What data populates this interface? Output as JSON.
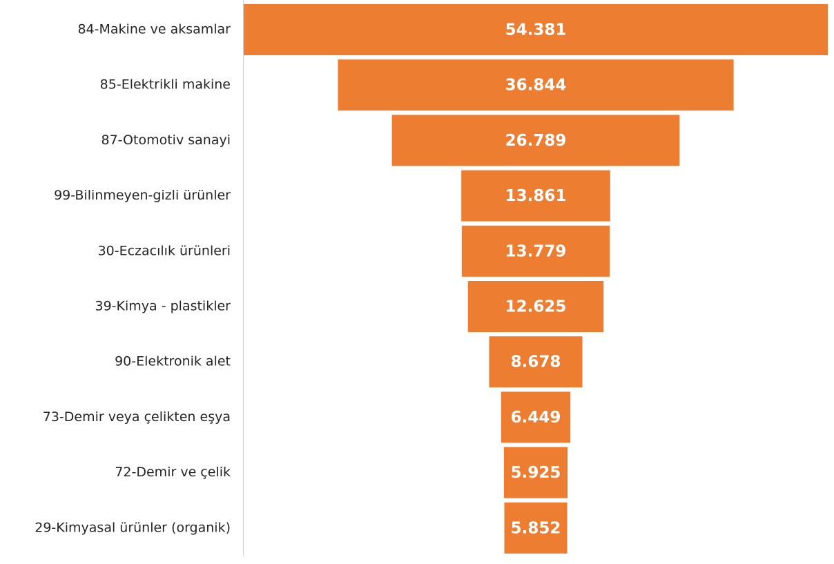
{
  "chart_data": {
    "type": "funnel",
    "color": "#ed7d31",
    "categories": [
      "84-Makine ve aksamlar",
      "85-Elektrikli makine",
      "87-Otomotiv sanayi",
      "99-Bilinmeyen-gizli ürünler",
      "30-Eczacılık ürünleri",
      "39-Kimya - plastikler",
      "90-Elektronik alet",
      "73-Demir veya çelikten eşya",
      "72-Demir ve çelik",
      "29-Kimyasal ürünler (organik)"
    ],
    "values": [
      54381,
      36844,
      26789,
      13861,
      13779,
      12625,
      8678,
      6449,
      5925,
      5852
    ],
    "value_labels": [
      "54.381",
      "36.844",
      "26.789",
      "13.861",
      "13.779",
      "12.625",
      "8.678",
      "6.449",
      "5.925",
      "5.852"
    ]
  }
}
